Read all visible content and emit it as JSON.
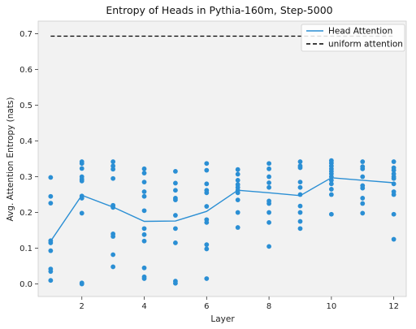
{
  "chart_data": {
    "type": "scatter",
    "title": "Entropy of Heads in Pythia-160m, Step-5000",
    "xlabel": "Layer",
    "ylabel": "Avg. Attention Entropy (nats)",
    "xlim": [
      0.6,
      12.4
    ],
    "ylim": [
      -0.035,
      0.735
    ],
    "xticks": [
      2,
      4,
      6,
      8,
      10,
      12
    ],
    "yticks": [
      0.0,
      0.1,
      0.2,
      0.3,
      0.4,
      0.5,
      0.6,
      0.7
    ],
    "ytick_labels": [
      "0.0",
      "0.1",
      "0.2",
      "0.3",
      "0.4",
      "0.5",
      "0.6",
      "0.7"
    ],
    "grid": false,
    "legend_position": "top-right",
    "colors": {
      "points": "#2b8fd4",
      "line": "#2b8fd4",
      "uniform": "#000000",
      "plot_bg": "#f2f2f2"
    },
    "points": [
      {
        "layer": 1,
        "values": [
          0.298,
          0.245,
          0.226,
          0.121,
          0.115,
          0.093,
          0.042,
          0.035,
          0.01
        ]
      },
      {
        "layer": 2,
        "values": [
          0.342,
          0.337,
          0.323,
          0.3,
          0.293,
          0.288,
          0.246,
          0.24,
          0.198,
          0.003,
          0.0
        ]
      },
      {
        "layer": 3,
        "values": [
          0.342,
          0.33,
          0.321,
          0.295,
          0.22,
          0.214,
          0.14,
          0.133,
          0.082,
          0.048
        ]
      },
      {
        "layer": 4,
        "values": [
          0.322,
          0.31,
          0.285,
          0.258,
          0.245,
          0.205,
          0.155,
          0.138,
          0.12,
          0.045,
          0.02,
          0.015
        ]
      },
      {
        "layer": 5,
        "values": [
          0.315,
          0.282,
          0.262,
          0.24,
          0.235,
          0.192,
          0.155,
          0.115,
          0.008,
          0.002
        ]
      },
      {
        "layer": 6,
        "values": [
          0.337,
          0.318,
          0.28,
          0.262,
          0.255,
          0.217,
          0.18,
          0.172,
          0.11,
          0.098,
          0.015
        ]
      },
      {
        "layer": 7,
        "values": [
          0.32,
          0.307,
          0.29,
          0.278,
          0.27,
          0.262,
          0.255,
          0.235,
          0.2,
          0.158
        ]
      },
      {
        "layer": 8,
        "values": [
          0.337,
          0.322,
          0.3,
          0.283,
          0.27,
          0.232,
          0.225,
          0.2,
          0.172,
          0.105
        ]
      },
      {
        "layer": 9,
        "values": [
          0.342,
          0.33,
          0.325,
          0.285,
          0.27,
          0.25,
          0.218,
          0.2,
          0.175,
          0.155
        ]
      },
      {
        "layer": 10,
        "values": [
          0.345,
          0.338,
          0.33,
          0.322,
          0.315,
          0.308,
          0.3,
          0.29,
          0.28,
          0.265,
          0.25,
          0.195
        ]
      },
      {
        "layer": 11,
        "values": [
          0.342,
          0.328,
          0.322,
          0.3,
          0.275,
          0.268,
          0.24,
          0.225,
          0.198
        ]
      },
      {
        "layer": 12,
        "values": [
          0.342,
          0.325,
          0.318,
          0.308,
          0.3,
          0.295,
          0.28,
          0.258,
          0.25,
          0.195,
          0.125
        ]
      }
    ],
    "series": [
      {
        "name": "Head Attention",
        "style": "line",
        "x": [
          1,
          2,
          3,
          4,
          5,
          6,
          7,
          8,
          9,
          10,
          11,
          12
        ],
        "y": [
          0.12,
          0.248,
          0.215,
          0.175,
          0.176,
          0.203,
          0.262,
          0.255,
          0.247,
          0.297,
          0.29,
          0.283
        ]
      },
      {
        "name": "uniform attention",
        "style": "dashed",
        "x": [
          1,
          12
        ],
        "y": [
          0.693,
          0.693
        ]
      }
    ]
  }
}
